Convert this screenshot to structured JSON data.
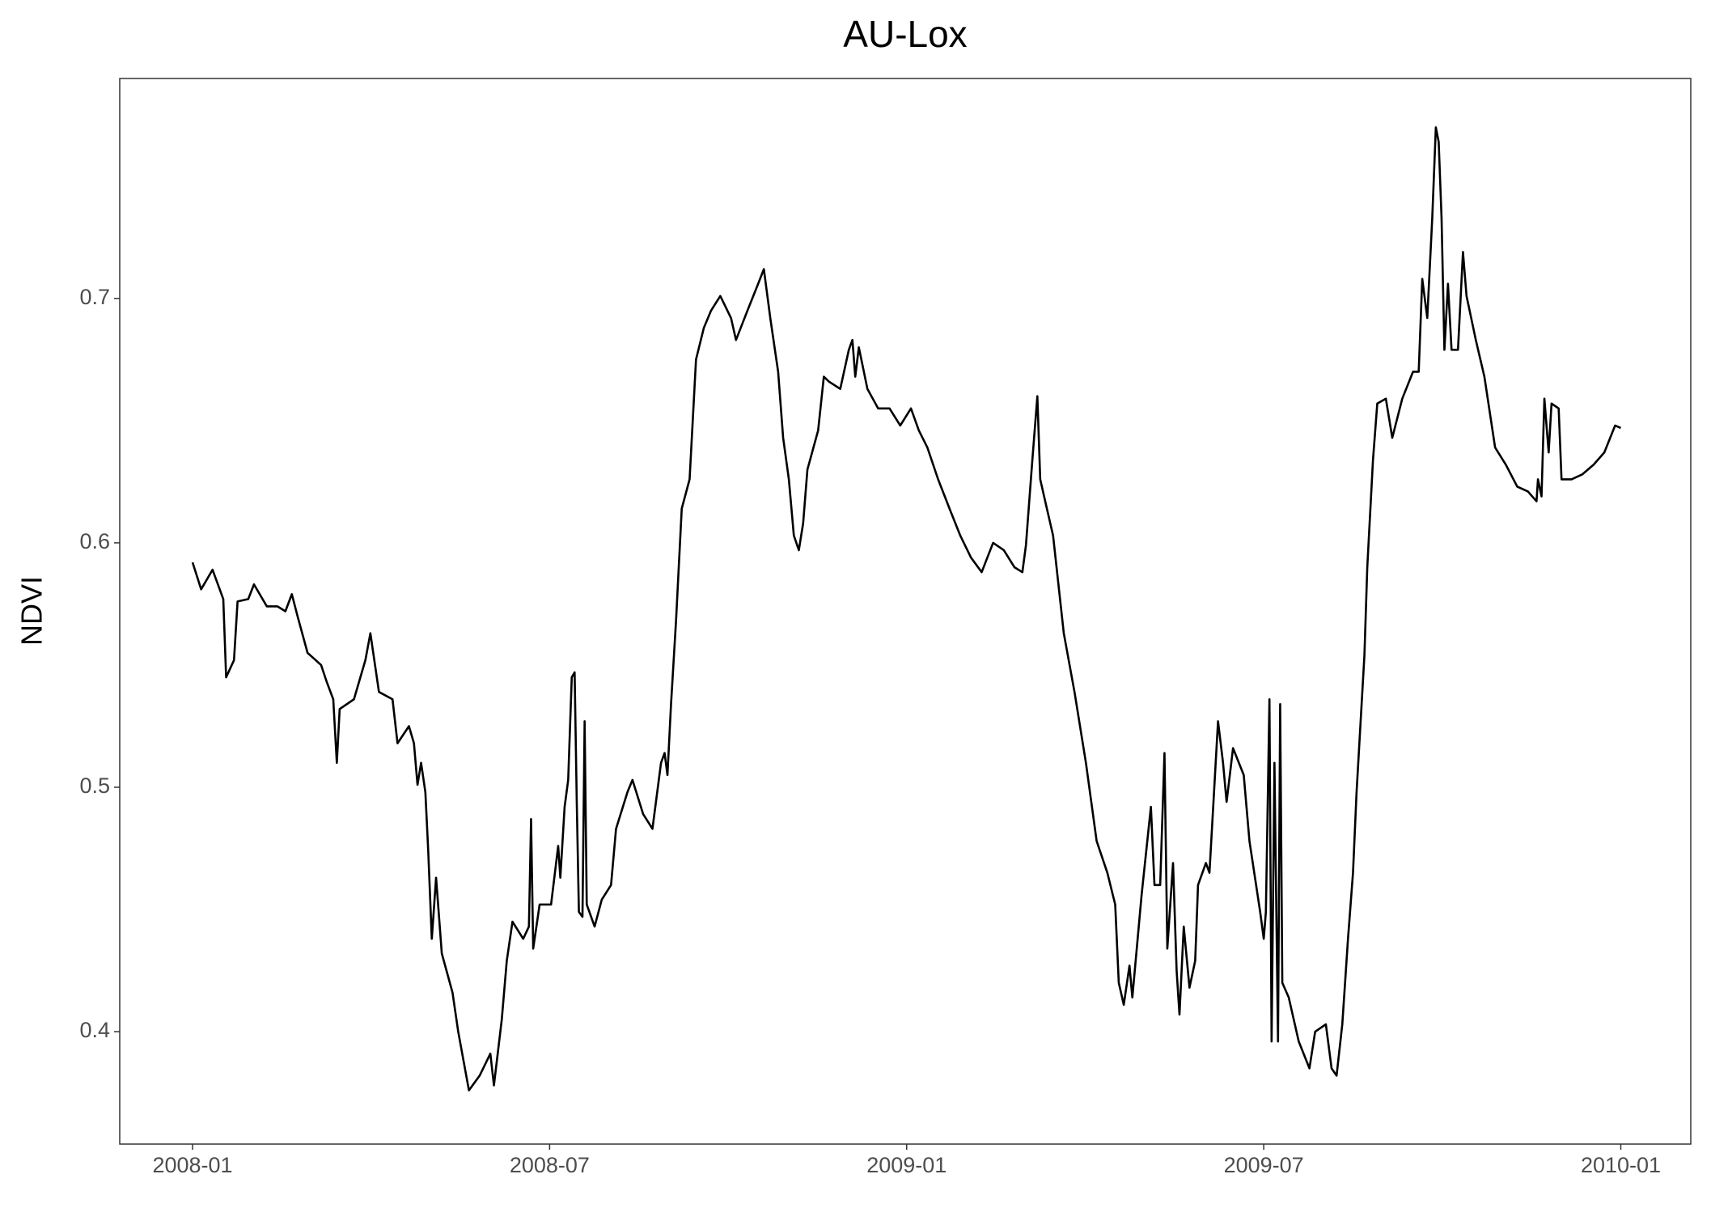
{
  "chart_data": {
    "type": "line",
    "title": "AU-Lox",
    "y_label": "NDVI",
    "x": [
      2008.0,
      2008.012,
      2008.028,
      2008.043,
      2008.047,
      2008.058,
      2008.063,
      2008.078,
      2008.086,
      2008.104,
      2008.119,
      2008.13,
      2008.139,
      2008.147,
      2008.161,
      2008.18,
      2008.188,
      2008.197,
      2008.202,
      2008.206,
      2008.226,
      2008.242,
      2008.249,
      2008.261,
      2008.28,
      2008.287,
      2008.303,
      2008.31,
      2008.315,
      2008.32,
      2008.326,
      2008.33,
      2008.335,
      2008.341,
      2008.349,
      2008.364,
      2008.372,
      2008.387,
      2008.402,
      2008.417,
      2008.422,
      2008.433,
      2008.44,
      2008.448,
      2008.463,
      2008.471,
      2008.474,
      2008.477,
      2008.486,
      2008.502,
      2008.512,
      2008.515,
      2008.521,
      2008.526,
      2008.531,
      2008.535,
      2008.538,
      2008.541,
      2008.546,
      2008.549,
      2008.552,
      2008.563,
      2008.573,
      2008.586,
      2008.593,
      2008.609,
      2008.616,
      2008.631,
      2008.644,
      2008.656,
      2008.661,
      2008.665,
      2008.67,
      2008.677,
      2008.685,
      2008.696,
      2008.705,
      2008.716,
      2008.726,
      2008.739,
      2008.754,
      2008.761,
      2008.777,
      2008.792,
      2008.8,
      2008.809,
      2008.82,
      2008.827,
      2008.835,
      2008.842,
      2008.849,
      2008.855,
      2008.861,
      2008.876,
      2008.884,
      2008.891,
      2008.907,
      2008.919,
      2008.924,
      2008.928,
      2008.933,
      2008.945,
      2008.96,
      2008.976,
      2008.991,
      2009.006,
      2009.017,
      2009.029,
      2009.044,
      2009.06,
      2009.075,
      2009.09,
      2009.105,
      2009.121,
      2009.136,
      2009.151,
      2009.162,
      2009.167,
      2009.176,
      2009.183,
      2009.187,
      2009.194,
      2009.205,
      2009.22,
      2009.235,
      2009.251,
      2009.266,
      2009.281,
      2009.292,
      2009.297,
      2009.304,
      2009.312,
      2009.316,
      2009.329,
      2009.342,
      2009.347,
      2009.355,
      2009.361,
      2009.365,
      2009.373,
      2009.378,
      2009.382,
      2009.388,
      2009.396,
      2009.404,
      2009.408,
      2009.419,
      2009.424,
      2009.43,
      2009.436,
      2009.443,
      2009.448,
      2009.457,
      2009.472,
      2009.48,
      2009.495,
      2009.5,
      2009.503,
      2009.508,
      2009.511,
      2009.515,
      2009.52,
      2009.523,
      2009.526,
      2009.535,
      2009.549,
      2009.564,
      2009.572,
      2009.587,
      2009.595,
      2009.602,
      2009.61,
      2009.618,
      2009.625,
      2009.63,
      2009.641,
      2009.645,
      2009.653,
      2009.659,
      2009.671,
      2009.68,
      2009.694,
      2009.709,
      2009.717,
      2009.722,
      2009.729,
      2009.736,
      2009.741,
      2009.745,
      2009.749,
      2009.753,
      2009.758,
      2009.763,
      2009.772,
      2009.779,
      2009.784,
      2009.797,
      2009.809,
      2009.824,
      2009.839,
      2009.855,
      2009.87,
      2009.882,
      2009.884,
      2009.889,
      2009.893,
      2009.899,
      2009.903,
      2009.913,
      2009.917,
      2009.931,
      2009.946,
      2009.962,
      2009.977,
      2009.992,
      2010.0
    ],
    "series": [
      {
        "color": "#000000",
        "values": [
          0.592,
          0.581,
          0.589,
          0.577,
          0.545,
          0.552,
          0.576,
          0.577,
          0.583,
          0.574,
          0.574,
          0.572,
          0.579,
          0.57,
          0.555,
          0.55,
          0.543,
          0.536,
          0.51,
          0.532,
          0.536,
          0.552,
          0.563,
          0.539,
          0.536,
          0.518,
          0.525,
          0.518,
          0.501,
          0.51,
          0.498,
          0.474,
          0.438,
          0.463,
          0.432,
          0.416,
          0.4,
          0.376,
          0.382,
          0.391,
          0.378,
          0.405,
          0.429,
          0.445,
          0.438,
          0.443,
          0.487,
          0.434,
          0.452,
          0.452,
          0.476,
          0.463,
          0.492,
          0.503,
          0.545,
          0.547,
          0.494,
          0.449,
          0.447,
          0.527,
          0.452,
          0.443,
          0.454,
          0.46,
          0.483,
          0.498,
          0.503,
          0.489,
          0.483,
          0.51,
          0.514,
          0.505,
          0.534,
          0.568,
          0.614,
          0.626,
          0.675,
          0.688,
          0.695,
          0.701,
          0.692,
          0.683,
          0.695,
          0.706,
          0.712,
          0.692,
          0.67,
          0.643,
          0.626,
          0.603,
          0.597,
          0.608,
          0.63,
          0.646,
          0.668,
          0.666,
          0.663,
          0.679,
          0.683,
          0.668,
          0.68,
          0.663,
          0.655,
          0.655,
          0.648,
          0.655,
          0.646,
          0.639,
          0.626,
          0.614,
          0.603,
          0.594,
          0.588,
          0.6,
          0.597,
          0.59,
          0.588,
          0.599,
          0.634,
          0.66,
          0.626,
          0.617,
          0.603,
          0.563,
          0.539,
          0.51,
          0.478,
          0.465,
          0.452,
          0.42,
          0.411,
          0.427,
          0.414,
          0.456,
          0.492,
          0.46,
          0.46,
          0.514,
          0.434,
          0.469,
          0.425,
          0.407,
          0.443,
          0.418,
          0.429,
          0.46,
          0.469,
          0.465,
          0.496,
          0.527,
          0.51,
          0.494,
          0.516,
          0.505,
          0.478,
          0.449,
          0.438,
          0.449,
          0.536,
          0.396,
          0.51,
          0.396,
          0.534,
          0.42,
          0.414,
          0.396,
          0.385,
          0.4,
          0.403,
          0.385,
          0.382,
          0.403,
          0.438,
          0.465,
          0.498,
          0.554,
          0.59,
          0.634,
          0.657,
          0.659,
          0.643,
          0.659,
          0.67,
          0.67,
          0.708,
          0.692,
          0.733,
          0.77,
          0.764,
          0.733,
          0.679,
          0.706,
          0.679,
          0.679,
          0.719,
          0.701,
          0.683,
          0.668,
          0.639,
          0.632,
          0.623,
          0.621,
          0.617,
          0.626,
          0.619,
          0.659,
          0.637,
          0.657,
          0.655,
          0.626,
          0.626,
          0.628,
          0.632,
          0.637,
          0.648,
          0.647
        ]
      }
    ],
    "xlim": [
      2007.898,
      2010.098
    ],
    "xticks": [
      {
        "value": 2008,
        "label": "2008-01"
      },
      {
        "value": 2008.5,
        "label": "2008-07"
      },
      {
        "value": 2009,
        "label": "2009-01"
      },
      {
        "value": 2009.5,
        "label": "2009-07"
      },
      {
        "value": 2010,
        "label": "2010-01"
      }
    ],
    "ylim": [
      0.354,
      0.79
    ],
    "yticks": [
      0.4,
      0.5,
      0.6,
      0.7
    ],
    "grid": false
  }
}
